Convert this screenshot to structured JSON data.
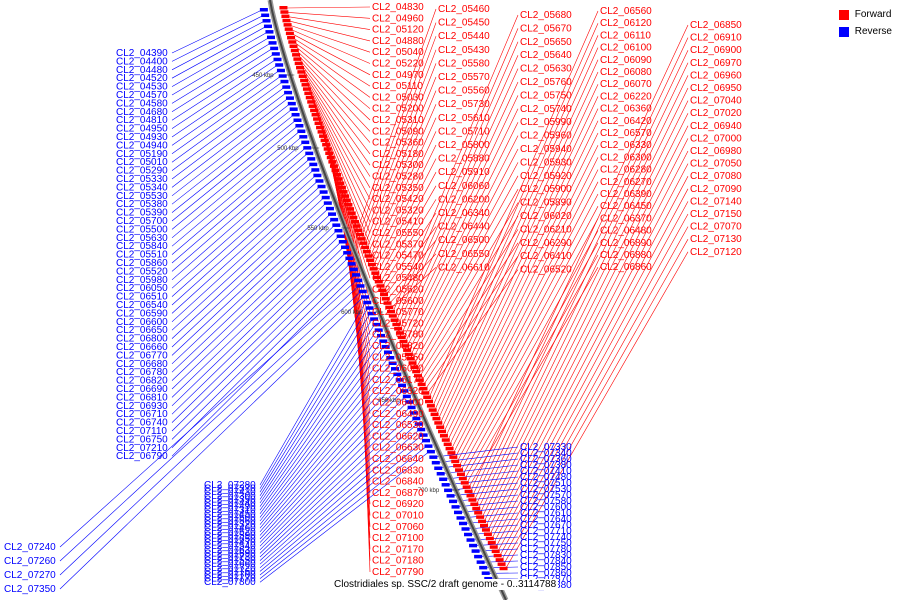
{
  "legend": {
    "forward_label": "Forward",
    "reverse_label": "Reverse",
    "forward_color": "#ff0000",
    "reverse_color": "#0000ff"
  },
  "caption": "Clostridiales sp. SSC/2 draft genome - 0..3114788",
  "scale_marks": [
    "450 kbp",
    "500 kbp",
    "550 kbp",
    "600 kbp",
    "650 kbp",
    "700 kbp"
  ],
  "forward_labels": [
    "CL2_04830",
    "CL2_04960",
    "CL2_05120",
    "CL2_04880",
    "CL2_05040",
    "CL2_05220",
    "CL2_04970",
    "CL2_05110",
    "CL2_05030",
    "CL2_05200",
    "CL2_05310",
    "CL2_05090",
    "CL2_05360",
    "CL2_05180",
    "CL2_05300",
    "CL2_05280",
    "CL2_05350",
    "CL2_05420",
    "CL2_05320",
    "CL2_05410",
    "CL2_05550",
    "CL2_05370",
    "CL2_05470",
    "CL2_05540",
    "CL2_05480",
    "CL2_05620",
    "CL2_05600",
    "CL2_05770",
    "CL2_05720",
    "CL2_05780",
    "CL2_05820",
    "CL2_05950",
    "CL2_06030",
    "CL2_06170",
    "CL2_06320",
    "CL2_06400",
    "CL2_06490",
    "CL2_06530",
    "CL2_06620",
    "CL2_06630",
    "CL2_06640",
    "CL2_06830",
    "CL2_06840",
    "CL2_06870",
    "CL2_06920",
    "CL2_07010",
    "CL2_07060",
    "CL2_07100",
    "CL2_07170",
    "CL2_07180",
    "CL2_07790",
    "CL2_05460",
    "CL2_05450",
    "CL2_05440",
    "CL2_05430",
    "CL2_05580",
    "CL2_05570",
    "CL2_05560",
    "CL2_05730",
    "CL2_05610",
    "CL2_05710",
    "CL2_05800",
    "CL2_05880",
    "CL2_05910",
    "CL2_06060",
    "CL2_06200",
    "CL2_06340",
    "CL2_06440",
    "CL2_06500",
    "CL2_06550",
    "CL2_06610",
    "CL2_05680",
    "CL2_05670",
    "CL2_05650",
    "CL2_05640",
    "CL2_05630",
    "CL2_05760",
    "CL2_05750",
    "CL2_05740",
    "CL2_05990",
    "CL2_05960",
    "CL2_05940",
    "CL2_05930",
    "CL2_05920",
    "CL2_05900",
    "CL2_05890",
    "CL2_06020",
    "CL2_06210",
    "CL2_06290",
    "CL2_06410",
    "CL2_06520",
    "CL2_06560",
    "CL2_06120",
    "CL2_06110",
    "CL2_06100",
    "CL2_06090",
    "CL2_06080",
    "CL2_06070",
    "CL2_06220",
    "CL2_06360",
    "CL2_06420",
    "CL2_06570",
    "CL2_06330",
    "CL2_06300",
    "CL2_06280",
    "CL2_06270",
    "CL2_06390",
    "CL2_06450",
    "CL2_06370",
    "CL2_06480",
    "CL2_06890",
    "CL2_06880",
    "CL2_06860",
    "CL2_06850",
    "CL2_06910",
    "CL2_06900",
    "CL2_06970",
    "CL2_06960",
    "CL2_06950",
    "CL2_07040",
    "CL2_07020",
    "CL2_06940",
    "CL2_07000",
    "CL2_06980",
    "CL2_07050",
    "CL2_07080",
    "CL2_07090",
    "CL2_07140",
    "CL2_07150",
    "CL2_07070",
    "CL2_07130",
    "CL2_07120"
  ],
  "reverse_labels": [
    "CL2_04390",
    "CL2_04400",
    "CL2_04480",
    "CL2_04520",
    "CL2_04530",
    "CL2_04570",
    "CL2_04580",
    "CL2_04680",
    "CL2_04810",
    "CL2_04950",
    "CL2_04930",
    "CL2_04940",
    "CL2_05190",
    "CL2_05010",
    "CL2_05290",
    "CL2_05330",
    "CL2_05340",
    "CL2_05530",
    "CL2_05380",
    "CL2_05390",
    "CL2_05700",
    "CL2_05500",
    "CL2_05630",
    "CL2_05840",
    "CL2_05510",
    "CL2_05860",
    "CL2_05520",
    "CL2_05980",
    "CL2_06050",
    "CL2_06510",
    "CL2_06540",
    "CL2_06590",
    "CL2_06600",
    "CL2_06650",
    "CL2_06800",
    "CL2_06660",
    "CL2_06770",
    "CL2_06680",
    "CL2_06780",
    "CL2_06820",
    "CL2_06690",
    "CL2_06810",
    "CL2_06930",
    "CL2_06710",
    "CL2_06740",
    "CL2_07110",
    "CL2_06750",
    "CL2_07210",
    "CL2_06790",
    "CL2_07240",
    "CL2_07260",
    "CL2_07270",
    "CL2_07350",
    "CL2_07280",
    "CL2_07370",
    "CL2_07430",
    "CL2_07300",
    "CL2_07390",
    "CL2_07440",
    "CL2_07490",
    "CL2_07310",
    "CL2_07450",
    "CL2_07500",
    "CL2_07560",
    "CL2_07320",
    "CL2_07460",
    "CL2_07520",
    "CL2_07590",
    "CL2_07650",
    "CL2_07470",
    "CL2_07540",
    "CL2_07630",
    "CL2_07690",
    "CL2_07730",
    "CL2_07550",
    "CL2_07660",
    "CL2_07720",
    "CL2_07760",
    "CL2_07700",
    "CL2_07770",
    "CL2_07800",
    "CL2_07330",
    "CL2_07340",
    "CL2_07360",
    "CL2_07380",
    "CL2_07410",
    "CL2_07480",
    "CL2_07510",
    "CL2_07530",
    "CL2_07570",
    "CL2_07580",
    "CL2_07600",
    "CL2_07610",
    "CL2_07640",
    "CL2_07670",
    "CL2_07710",
    "CL2_07740",
    "CL2_07750",
    "CL2_07780",
    "CL2_07830",
    "CL2_07840",
    "CL2_07850",
    "CL2_07860",
    "CL2_07870",
    "CL2_07880"
  ]
}
